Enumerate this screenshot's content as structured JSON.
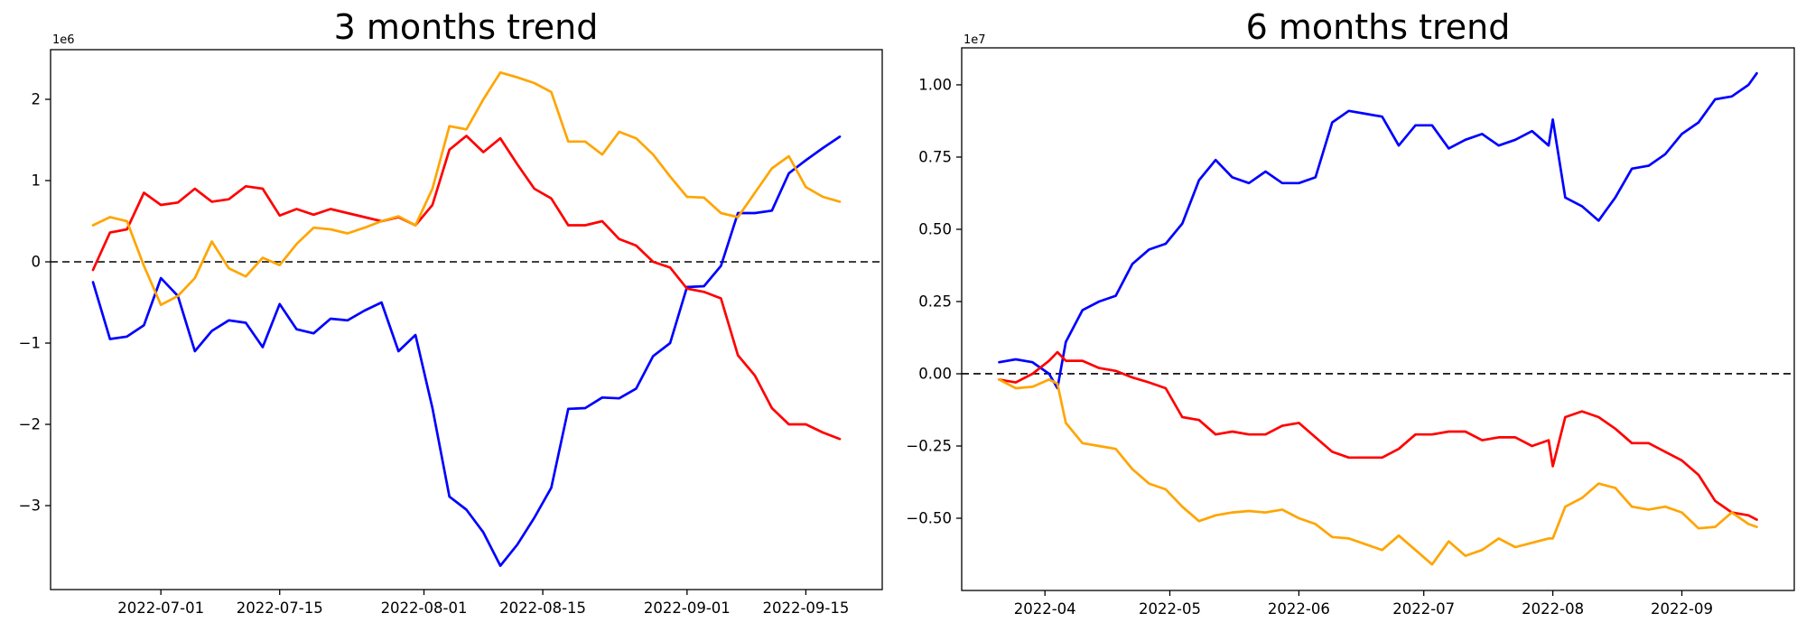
{
  "figure": {
    "background": "#ffffff"
  },
  "chart_data": [
    {
      "type": "line",
      "title": "3 months trend",
      "offset_label": "1e6",
      "value_unit": 1000000,
      "grid": false,
      "legend": "none",
      "zero_dashline": true,
      "x_domain": [
        "2022-06-18",
        "2022-09-24"
      ],
      "ylim": [
        -4.033,
        2.611
      ],
      "y_ticks": [
        {
          "value": 2,
          "label": "2"
        },
        {
          "value": 1,
          "label": "1"
        },
        {
          "value": 0,
          "label": "0"
        },
        {
          "value": -1,
          "label": "−1"
        },
        {
          "value": -2,
          "label": "−2"
        },
        {
          "value": -3,
          "label": "−3"
        }
      ],
      "x_ticks": [
        {
          "date": "2022-07-01",
          "label": "2022-07-01"
        },
        {
          "date": "2022-07-15",
          "label": "2022-07-15"
        },
        {
          "date": "2022-08-01",
          "label": "2022-08-01"
        },
        {
          "date": "2022-08-15",
          "label": "2022-08-15"
        },
        {
          "date": "2022-09-01",
          "label": "2022-09-01"
        },
        {
          "date": "2022-09-15",
          "label": "2022-09-15"
        }
      ],
      "dates": [
        "2022-06-23",
        "2022-06-25",
        "2022-06-27",
        "2022-06-29",
        "2022-07-01",
        "2022-07-03",
        "2022-07-05",
        "2022-07-07",
        "2022-07-09",
        "2022-07-11",
        "2022-07-13",
        "2022-07-15",
        "2022-07-17",
        "2022-07-19",
        "2022-07-21",
        "2022-07-23",
        "2022-07-25",
        "2022-07-27",
        "2022-07-29",
        "2022-07-31",
        "2022-08-02",
        "2022-08-04",
        "2022-08-06",
        "2022-08-08",
        "2022-08-10",
        "2022-08-12",
        "2022-08-14",
        "2022-08-16",
        "2022-08-18",
        "2022-08-20",
        "2022-08-22",
        "2022-08-24",
        "2022-08-26",
        "2022-08-28",
        "2022-08-30",
        "2022-09-01",
        "2022-09-03",
        "2022-09-05",
        "2022-09-07",
        "2022-09-09",
        "2022-09-11",
        "2022-09-13",
        "2022-09-15",
        "2022-09-17",
        "2022-09-19"
      ],
      "series": [
        {
          "name": "blue",
          "color": "#0000ff",
          "values": [
            -0.25,
            -0.95,
            -0.92,
            -0.78,
            -0.2,
            -0.42,
            -1.1,
            -0.85,
            -0.72,
            -0.75,
            -1.05,
            -0.52,
            -0.83,
            -0.88,
            -0.7,
            -0.72,
            -0.6,
            -0.5,
            -1.1,
            -0.9,
            -1.8,
            -2.89,
            -3.05,
            -3.33,
            -3.74,
            -3.48,
            -3.15,
            -2.78,
            -1.81,
            -1.8,
            -1.67,
            -1.68,
            -1.56,
            -1.16,
            -1.0,
            -0.31,
            -0.3,
            -0.05,
            0.6,
            0.6,
            0.63,
            1.09,
            1.25,
            1.4,
            1.54
          ]
        },
        {
          "name": "red",
          "color": "#ff0000",
          "values": [
            -0.1,
            0.36,
            0.4,
            0.85,
            0.7,
            0.73,
            0.9,
            0.74,
            0.77,
            0.93,
            0.9,
            0.57,
            0.65,
            0.58,
            0.65,
            0.6,
            0.55,
            0.5,
            0.55,
            0.45,
            0.7,
            1.38,
            1.55,
            1.35,
            1.52,
            1.2,
            0.9,
            0.78,
            0.45,
            0.45,
            0.5,
            0.28,
            0.2,
            0.0,
            -0.07,
            -0.33,
            -0.37,
            -0.45,
            -1.15,
            -1.4,
            -1.8,
            -2.0,
            -2.0,
            -2.1,
            -2.18
          ]
        },
        {
          "name": "orange",
          "color": "#ffa500",
          "values": [
            0.45,
            0.55,
            0.5,
            -0.05,
            -0.53,
            -0.42,
            -0.2,
            0.25,
            -0.08,
            -0.18,
            0.05,
            -0.04,
            0.22,
            0.42,
            0.4,
            0.35,
            0.42,
            0.5,
            0.56,
            0.45,
            0.9,
            1.67,
            1.63,
            2.0,
            2.33,
            2.27,
            2.2,
            2.09,
            1.48,
            1.48,
            1.32,
            1.6,
            1.52,
            1.32,
            1.05,
            0.8,
            0.79,
            0.6,
            0.55,
            0.85,
            1.15,
            1.3,
            0.92,
            0.8,
            0.74
          ]
        }
      ]
    },
    {
      "type": "line",
      "title": "6 months trend",
      "offset_label": "1e7",
      "value_unit": 10000000,
      "grid": false,
      "legend": "none",
      "zero_dashline": true,
      "x_domain": [
        "2022-03-12",
        "2022-09-28"
      ],
      "ylim": [
        -0.75,
        1.128
      ],
      "y_ticks": [
        {
          "value": 1.0,
          "label": "1.00"
        },
        {
          "value": 0.75,
          "label": "0.75"
        },
        {
          "value": 0.5,
          "label": "0.50"
        },
        {
          "value": 0.25,
          "label": "0.25"
        },
        {
          "value": 0.0,
          "label": "0.00"
        },
        {
          "value": -0.25,
          "label": "−0.25"
        },
        {
          "value": -0.5,
          "label": "−0.50"
        }
      ],
      "x_ticks": [
        {
          "date": "2022-04-01",
          "label": "2022-04"
        },
        {
          "date": "2022-05-01",
          "label": "2022-05"
        },
        {
          "date": "2022-06-01",
          "label": "2022-06"
        },
        {
          "date": "2022-07-01",
          "label": "2022-07"
        },
        {
          "date": "2022-08-01",
          "label": "2022-08"
        },
        {
          "date": "2022-09-01",
          "label": "2022-09"
        }
      ],
      "dates": [
        "2022-03-21",
        "2022-03-25",
        "2022-03-29",
        "2022-04-02",
        "2022-04-04",
        "2022-04-06",
        "2022-04-10",
        "2022-04-14",
        "2022-04-18",
        "2022-04-22",
        "2022-04-26",
        "2022-04-30",
        "2022-05-04",
        "2022-05-08",
        "2022-05-12",
        "2022-05-16",
        "2022-05-20",
        "2022-05-24",
        "2022-05-28",
        "2022-06-01",
        "2022-06-05",
        "2022-06-09",
        "2022-06-13",
        "2022-06-17",
        "2022-06-21",
        "2022-06-25",
        "2022-06-29",
        "2022-07-03",
        "2022-07-07",
        "2022-07-11",
        "2022-07-15",
        "2022-07-19",
        "2022-07-23",
        "2022-07-27",
        "2022-07-31",
        "2022-08-01",
        "2022-08-04",
        "2022-08-08",
        "2022-08-12",
        "2022-08-16",
        "2022-08-20",
        "2022-08-24",
        "2022-08-28",
        "2022-09-01",
        "2022-09-05",
        "2022-09-09",
        "2022-09-13",
        "2022-09-17",
        "2022-09-19"
      ],
      "series": [
        {
          "name": "blue",
          "color": "#0000ff",
          "values": [
            0.04,
            0.05,
            0.04,
            0.0,
            -0.05,
            0.11,
            0.22,
            0.25,
            0.27,
            0.38,
            0.43,
            0.45,
            0.52,
            0.67,
            0.74,
            0.68,
            0.66,
            0.7,
            0.66,
            0.66,
            0.68,
            0.87,
            0.91,
            0.9,
            0.89,
            0.79,
            0.86,
            0.86,
            0.78,
            0.81,
            0.83,
            0.79,
            0.81,
            0.84,
            0.79,
            0.88,
            0.61,
            0.58,
            0.53,
            0.61,
            0.71,
            0.72,
            0.76,
            0.83,
            0.87,
            0.95,
            0.96,
            1.0,
            1.04
          ]
        },
        {
          "name": "red",
          "color": "#ff0000",
          "values": [
            -0.02,
            -0.03,
            0.0,
            0.045,
            0.075,
            0.045,
            0.045,
            0.02,
            0.01,
            -0.013,
            -0.03,
            -0.05,
            -0.15,
            -0.16,
            -0.21,
            -0.2,
            -0.21,
            -0.21,
            -0.18,
            -0.17,
            -0.22,
            -0.27,
            -0.29,
            -0.29,
            -0.29,
            -0.26,
            -0.21,
            -0.21,
            -0.2,
            -0.2,
            -0.23,
            -0.22,
            -0.22,
            -0.25,
            -0.23,
            -0.32,
            -0.15,
            -0.13,
            -0.15,
            -0.19,
            -0.24,
            -0.24,
            -0.27,
            -0.3,
            -0.35,
            -0.44,
            -0.48,
            -0.49,
            -0.505
          ]
        },
        {
          "name": "orange",
          "color": "#ffa500",
          "values": [
            -0.02,
            -0.05,
            -0.045,
            -0.02,
            -0.034,
            -0.17,
            -0.24,
            -0.25,
            -0.26,
            -0.33,
            -0.38,
            -0.4,
            -0.46,
            -0.51,
            -0.49,
            -0.48,
            -0.475,
            -0.48,
            -0.47,
            -0.5,
            -0.52,
            -0.565,
            -0.57,
            -0.59,
            -0.61,
            -0.56,
            -0.61,
            -0.66,
            -0.58,
            -0.63,
            -0.61,
            -0.57,
            -0.6,
            -0.585,
            -0.57,
            -0.57,
            -0.46,
            -0.43,
            -0.38,
            -0.395,
            -0.46,
            -0.47,
            -0.46,
            -0.48,
            -0.535,
            -0.53,
            -0.48,
            -0.52,
            -0.53
          ]
        }
      ]
    }
  ]
}
